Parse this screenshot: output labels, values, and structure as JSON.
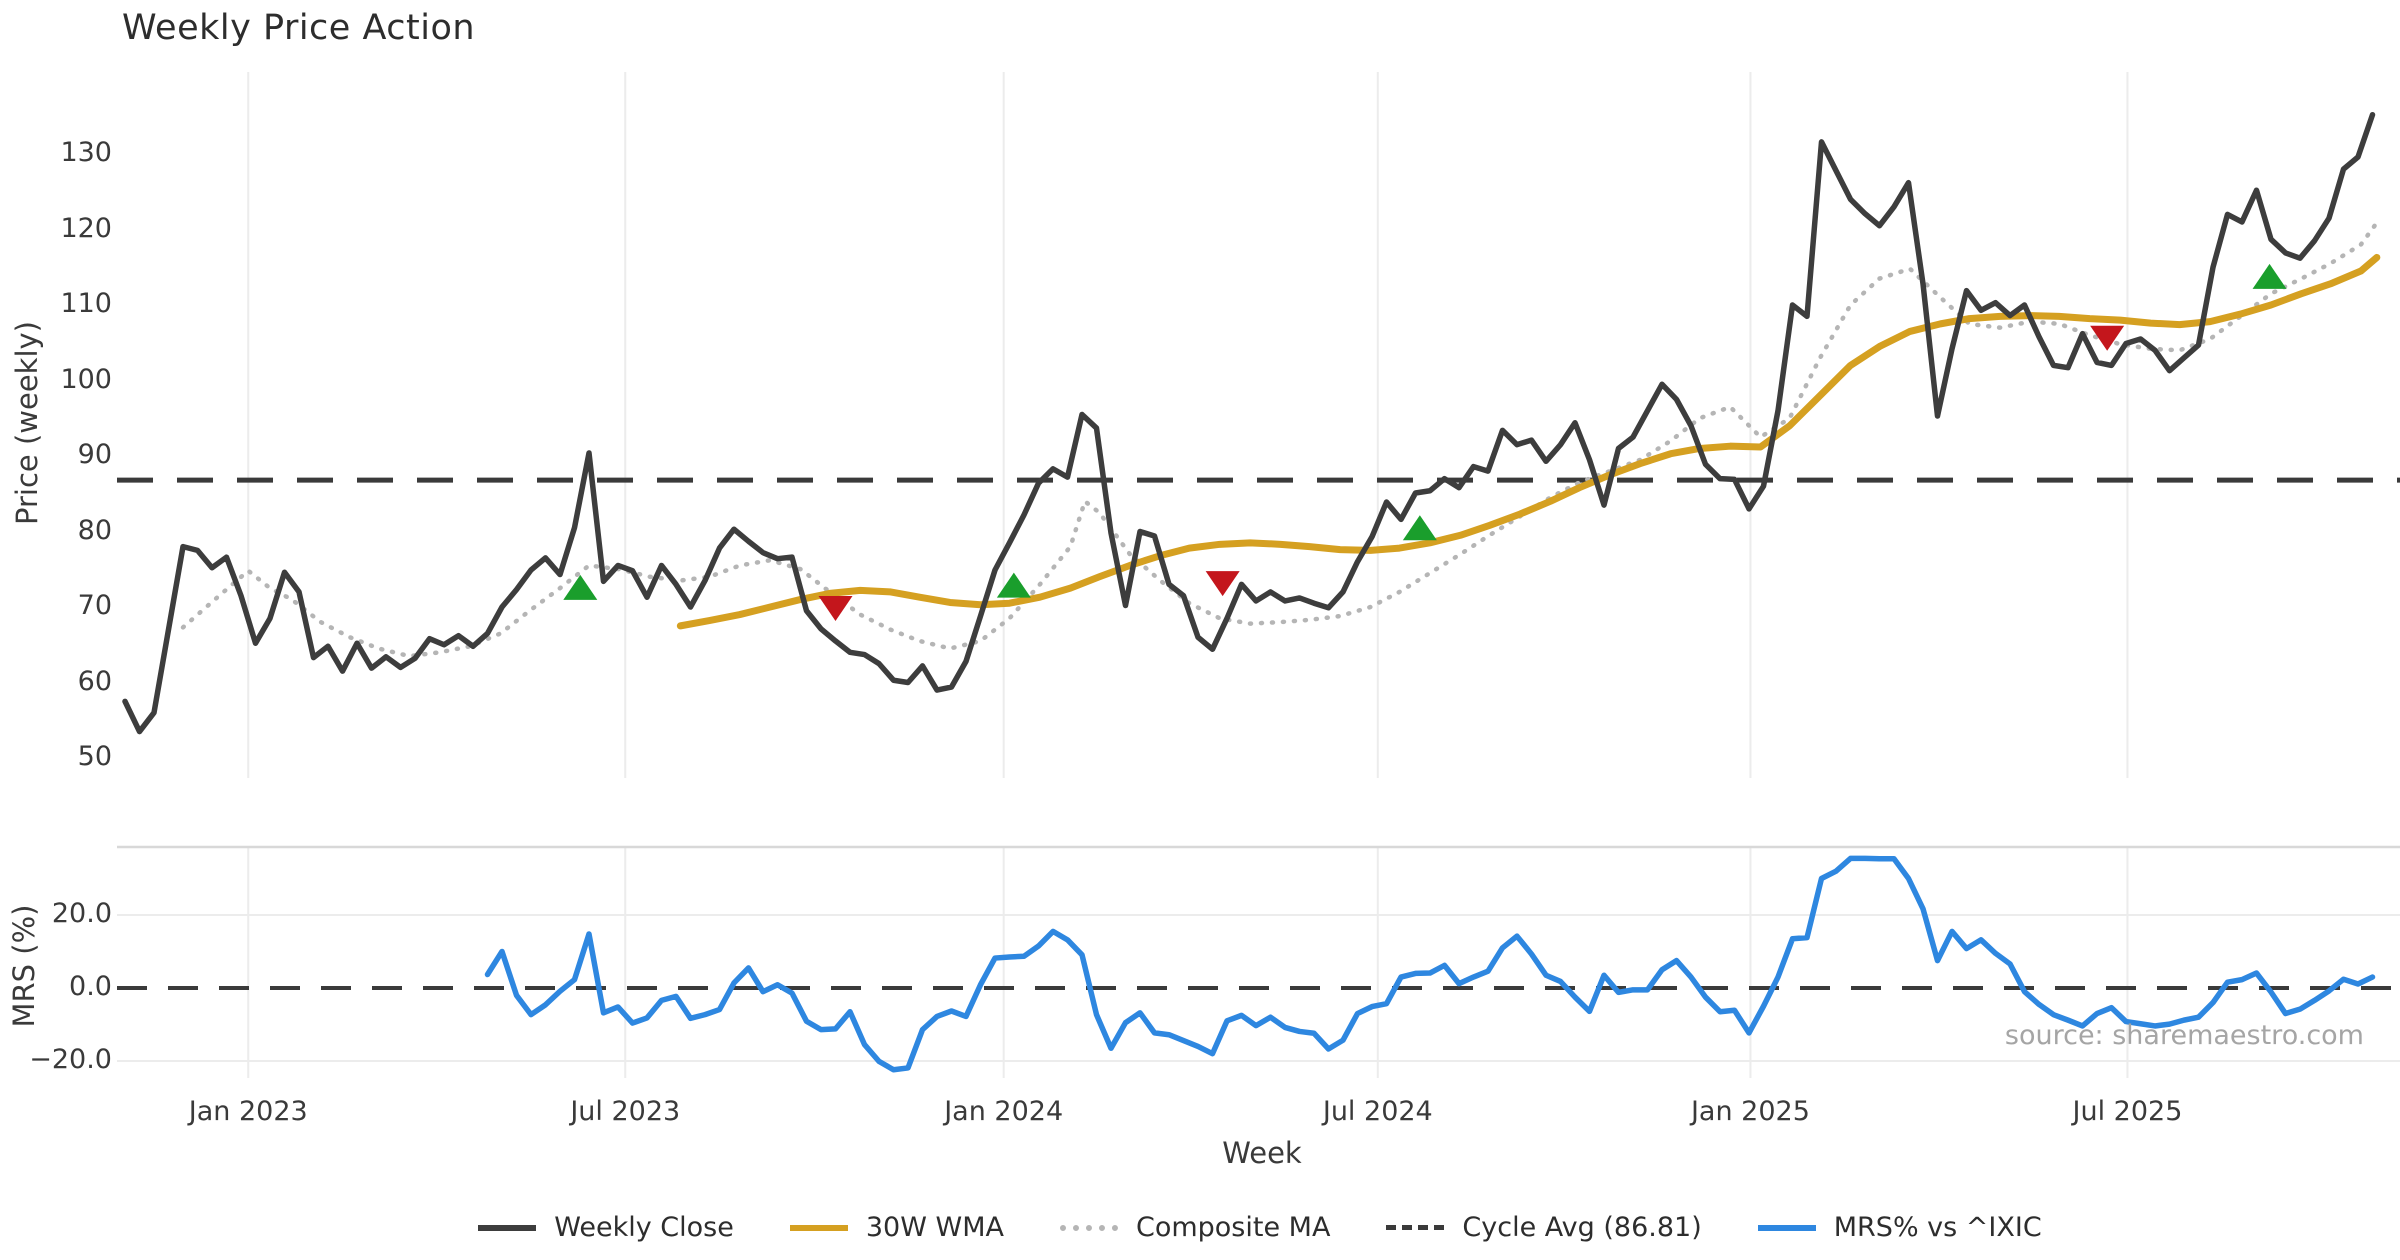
{
  "source": "source: sharemaestro.com",
  "colors": {
    "weekly_close": "#3d3d3d",
    "wma": "#d5a021",
    "composite": "#b5b5b5",
    "cycle_avg": "#3a3a3a",
    "mrs": "#2e87e0",
    "buy_marker": "#1a9e2c",
    "sell_marker": "#c4161c",
    "grid": "#ececec",
    "spine": "#d8d8d8",
    "tick_text": "#3a3a3a"
  },
  "legend": [
    {
      "label": "Weekly Close",
      "swatch": "solid",
      "color": "#3d3d3d"
    },
    {
      "label": "30W WMA",
      "swatch": "solid",
      "color": "#d5a021"
    },
    {
      "label": "Composite MA",
      "swatch": "dotted",
      "color": "#b5b5b5"
    },
    {
      "label": "Cycle Avg (86.81)",
      "swatch": "dashed",
      "color": "#3a3a3a"
    },
    {
      "label": "MRS% vs ^IXIC",
      "swatch": "solid",
      "color": "#2e87e0"
    }
  ],
  "chart_data": {
    "type": "line",
    "title": "Weekly Price Action",
    "x_axis": {
      "label": "Week",
      "start_date": "2022-11-07",
      "freq": "weekly",
      "tick_labels": [
        "Jan 2023",
        "Jul 2023",
        "Jan 2024",
        "Jul 2024",
        "Jan 2025",
        "Jul 2025"
      ],
      "tick_week_indices": [
        8.5,
        34.5,
        60.6,
        86.4,
        112.1,
        138.1
      ]
    },
    "price_panel": {
      "ylabel": "Price (weekly)",
      "yticks": [
        50,
        60,
        70,
        80,
        90,
        100,
        110,
        120,
        130
      ],
      "ylim": [
        47.5,
        141.5
      ],
      "cycle_avg": 86.81,
      "weekly_close": [
        57.5,
        53.5,
        56,
        67,
        78,
        77.5,
        75.2,
        76.6,
        71.5,
        65.2,
        68.5,
        74.6,
        72,
        63.3,
        64.8,
        61.5,
        65.2,
        61.9,
        63.4,
        62,
        63.2,
        65.8,
        65,
        66.2,
        64.8,
        66.5,
        70,
        72.3,
        74.9,
        76.5,
        74.3,
        80.5,
        90.4,
        73.4,
        75.5,
        74.8,
        71.3,
        75.5,
        73,
        70,
        73.5,
        77.8,
        80.3,
        78.7,
        77.2,
        76.4,
        76.6,
        69.5,
        67.1,
        65.5,
        64,
        63.7,
        62.5,
        60.3,
        60,
        62.2,
        59,
        59.4,
        62.8,
        68.8,
        74.9,
        78.5,
        82.2,
        86.4,
        88.3,
        87.2,
        95.5,
        93.7,
        79.8,
        70.2,
        80,
        79.4,
        73,
        71.5,
        66,
        64.4,
        68.5,
        73,
        70.8,
        72,
        70.8,
        71.2,
        70.5,
        69.9,
        72,
        76,
        79.3,
        83.9,
        81.6,
        85.1,
        85.4,
        87,
        85.8,
        88.6,
        88,
        93.4,
        91.5,
        92.1,
        89.3,
        91.5,
        94.4,
        89.5,
        83.5,
        91,
        92.5,
        96,
        99.5,
        97.5,
        94,
        88.9,
        87,
        86.9,
        83,
        86,
        96,
        110,
        108.5,
        131.6,
        127.8,
        124,
        122.1,
        120.5,
        123,
        126.2,
        112.8,
        95.3,
        104.2,
        111.9,
        109.3,
        110.3,
        108.6,
        110,
        105.8,
        102,
        101.7,
        106.2,
        102.4,
        102,
        104.9,
        105.5,
        104,
        101.3,
        103,
        104.7,
        115,
        122,
        121,
        125.2,
        118.7,
        116.9,
        116.2,
        118.5,
        121.5,
        128,
        129.6,
        135.2
      ],
      "wma_30w_anchors": [
        [
          38.3,
          67.5
        ],
        [
          40.3,
          68.2
        ],
        [
          42.4,
          69
        ],
        [
          44.5,
          70
        ],
        [
          46.6,
          71
        ],
        [
          48.6,
          71.8
        ],
        [
          50.7,
          72.2
        ],
        [
          52.8,
          72
        ],
        [
          54.8,
          71.3
        ],
        [
          56.9,
          70.6
        ],
        [
          59,
          70.3
        ],
        [
          61,
          70.5
        ],
        [
          63.1,
          71.3
        ],
        [
          65.2,
          72.5
        ],
        [
          67.2,
          74
        ],
        [
          69.3,
          75.5
        ],
        [
          71.4,
          76.8
        ],
        [
          73.4,
          77.8
        ],
        [
          75.5,
          78.3
        ],
        [
          77.6,
          78.5
        ],
        [
          79.7,
          78.3
        ],
        [
          81.7,
          78
        ],
        [
          83.8,
          77.6
        ],
        [
          85.9,
          77.5
        ],
        [
          87.9,
          77.8
        ],
        [
          90,
          78.5
        ],
        [
          92.1,
          79.5
        ],
        [
          94.1,
          80.8
        ],
        [
          96.2,
          82.3
        ],
        [
          98.3,
          84
        ],
        [
          100.3,
          85.8
        ],
        [
          102.4,
          87.5
        ],
        [
          104.5,
          89
        ],
        [
          106.6,
          90.3
        ],
        [
          108.6,
          91
        ],
        [
          110.7,
          91.3
        ],
        [
          112.8,
          91.2
        ],
        [
          114.8,
          94
        ],
        [
          116.9,
          98
        ],
        [
          119,
          102
        ],
        [
          121,
          104.5
        ],
        [
          123.1,
          106.5
        ],
        [
          125.2,
          107.5
        ],
        [
          127.2,
          108.2
        ],
        [
          129.3,
          108.5
        ],
        [
          131.4,
          108.6
        ],
        [
          133.4,
          108.5
        ],
        [
          135.5,
          108.2
        ],
        [
          137.6,
          108
        ],
        [
          139.7,
          107.6
        ],
        [
          141.7,
          107.4
        ],
        [
          143.8,
          107.8
        ],
        [
          145.9,
          108.8
        ],
        [
          148,
          110
        ],
        [
          150.1,
          111.5
        ],
        [
          152.1,
          112.8
        ],
        [
          154.2,
          114.5
        ],
        [
          155.3,
          116.3
        ]
      ],
      "composite_ma_anchors": [
        [
          4,
          67.3
        ],
        [
          6.5,
          71.5
        ],
        [
          8.5,
          74.8
        ],
        [
          10,
          72.5
        ],
        [
          11.5,
          71
        ],
        [
          13.5,
          68
        ],
        [
          15.5,
          66
        ],
        [
          17.5,
          64.5
        ],
        [
          19.6,
          63.5
        ],
        [
          21.7,
          64
        ],
        [
          23.8,
          64.8
        ],
        [
          25.9,
          66.5
        ],
        [
          27.9,
          69.5
        ],
        [
          30,
          72.5
        ],
        [
          32,
          75.5
        ],
        [
          34.1,
          75
        ],
        [
          36.2,
          74
        ],
        [
          38.3,
          73.5
        ],
        [
          40.3,
          74
        ],
        [
          42.4,
          75.5
        ],
        [
          44.5,
          76.2
        ],
        [
          46.6,
          75
        ],
        [
          48.6,
          72
        ],
        [
          50.7,
          69
        ],
        [
          52.8,
          67
        ],
        [
          54.8,
          65.5
        ],
        [
          56.9,
          64.5
        ],
        [
          59,
          65.5
        ],
        [
          61,
          68.5
        ],
        [
          63.1,
          73
        ],
        [
          65.2,
          78
        ],
        [
          66.2,
          84
        ],
        [
          67.2,
          82.5
        ],
        [
          69.3,
          77
        ],
        [
          71.4,
          73.5
        ],
        [
          73.4,
          70.5
        ],
        [
          75.5,
          68.5
        ],
        [
          77.6,
          67.8
        ],
        [
          79.7,
          68
        ],
        [
          81.7,
          68.3
        ],
        [
          83.8,
          68.8
        ],
        [
          85.9,
          70
        ],
        [
          87.9,
          72
        ],
        [
          90,
          74.5
        ],
        [
          92.1,
          77
        ],
        [
          94.1,
          79.5
        ],
        [
          96.2,
          82
        ],
        [
          98.3,
          84.5
        ],
        [
          100.3,
          86.5
        ],
        [
          102.4,
          88
        ],
        [
          104.5,
          89.5
        ],
        [
          106.6,
          92
        ],
        [
          108.6,
          95
        ],
        [
          110.7,
          96.5
        ],
        [
          112.8,
          92.5
        ],
        [
          114.8,
          95
        ],
        [
          116.9,
          103
        ],
        [
          119,
          110
        ],
        [
          121,
          113.5
        ],
        [
          123.1,
          114.8
        ],
        [
          125.2,
          111
        ],
        [
          127.2,
          107.5
        ],
        [
          129.3,
          107
        ],
        [
          131.4,
          107.8
        ],
        [
          133.4,
          107.5
        ],
        [
          135.5,
          106
        ],
        [
          137.6,
          104.8
        ],
        [
          139.7,
          104.2
        ],
        [
          141.7,
          104
        ],
        [
          143.8,
          105.5
        ],
        [
          145.9,
          108.5
        ],
        [
          148,
          111.5
        ],
        [
          150.1,
          113.5
        ],
        [
          152.1,
          115.5
        ],
        [
          154.2,
          118
        ],
        [
          155.3,
          120.9
        ]
      ],
      "buy_markers": [
        [
          31.4,
          72.4
        ],
        [
          61.3,
          72.7
        ],
        [
          89.3,
          80.3
        ],
        [
          147.9,
          113.6
        ]
      ],
      "sell_markers": [
        [
          49,
          70
        ],
        [
          75.7,
          73.3
        ],
        [
          136.7,
          105.8
        ]
      ]
    },
    "mrs_panel": {
      "ylabel": "MRS (%)",
      "ytick_labels": [
        "20.0",
        "0.0",
        "−20.0"
      ],
      "ytick_values": [
        20,
        0,
        -20
      ],
      "zero_line": 0,
      "series_name": "MRS% vs ^IXIC",
      "start_week": 25,
      "values": [
        3.7,
        10,
        -2,
        -7.3,
        -4.6,
        -0.9,
        2.3,
        14.8,
        -6.8,
        -5.2,
        -9.6,
        -8.2,
        -3.4,
        -2.3,
        -8.3,
        -7.3,
        -5.9,
        1.4,
        5.5,
        -1,
        0.9,
        -1.4,
        -9.1,
        -11.4,
        -11.2,
        -6.5,
        -15.5,
        -20.1,
        -22.4,
        -21.9,
        -11.4,
        -7.8,
        -6.3,
        -7.8,
        0.9,
        8.2,
        8.5,
        8.7,
        11.5,
        15.5,
        13.2,
        9.1,
        -7.3,
        -16.5,
        -9.5,
        -6.8,
        -12.3,
        -12.8,
        -14.4,
        -16,
        -18,
        -9,
        -7.5,
        -10.3,
        -8,
        -10.8,
        -11.9,
        -12.4,
        -16.7,
        -14.3,
        -7,
        -5.1,
        -4.3,
        3,
        4,
        4.1,
        6.2,
        1.2,
        3,
        4.6,
        11,
        14.2,
        9.3,
        3.5,
        1.8,
        -2.5,
        -6.4,
        3.5,
        -1.2,
        -0.5,
        -0.5,
        5,
        7.5,
        3,
        -2.5,
        -6.5,
        -6.1,
        -12.3,
        -5,
        3,
        13.5,
        13.8,
        30,
        32,
        35.5,
        35.5,
        35.4,
        35.4,
        30,
        21.7,
        7.5,
        15.5,
        10.8,
        13.2,
        9.5,
        6.6,
        -1,
        -4.5,
        -7.3,
        -8.8,
        -10.4,
        -7,
        -5.4,
        -9.2,
        -9.8,
        -10.4,
        -9.9,
        -8.8,
        -8,
        -4,
        1.6,
        2.3,
        4.1,
        -1.1,
        -7,
        -5.8,
        -3.4,
        -0.8,
        2.4,
        1.1,
        3
      ]
    }
  }
}
